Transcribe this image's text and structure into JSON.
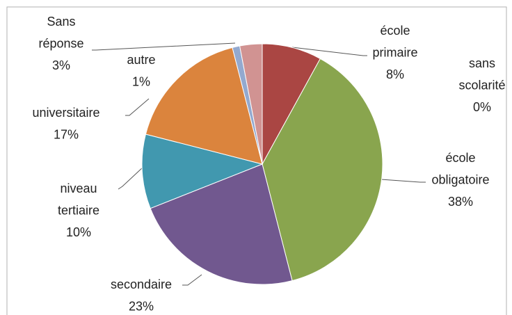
{
  "chart_data": {
    "type": "pie",
    "categories": [
      "sans scolarité",
      "école primaire",
      "école obligatoire",
      "secondaire",
      "niveau tertiaire",
      "universitaire",
      "autre",
      "Sans réponse"
    ],
    "values": [
      0,
      8,
      38,
      23,
      10,
      17,
      1,
      3
    ],
    "value_labels": [
      "0%",
      "8%",
      "38%",
      "23%",
      "10%",
      "17%",
      "1%",
      "3%"
    ],
    "colors": [
      "#7f7f7f",
      "#aa4643",
      "#89a54e",
      "#71588f",
      "#4198af",
      "#db843d",
      "#93a9cf",
      "#d19392"
    ]
  }
}
